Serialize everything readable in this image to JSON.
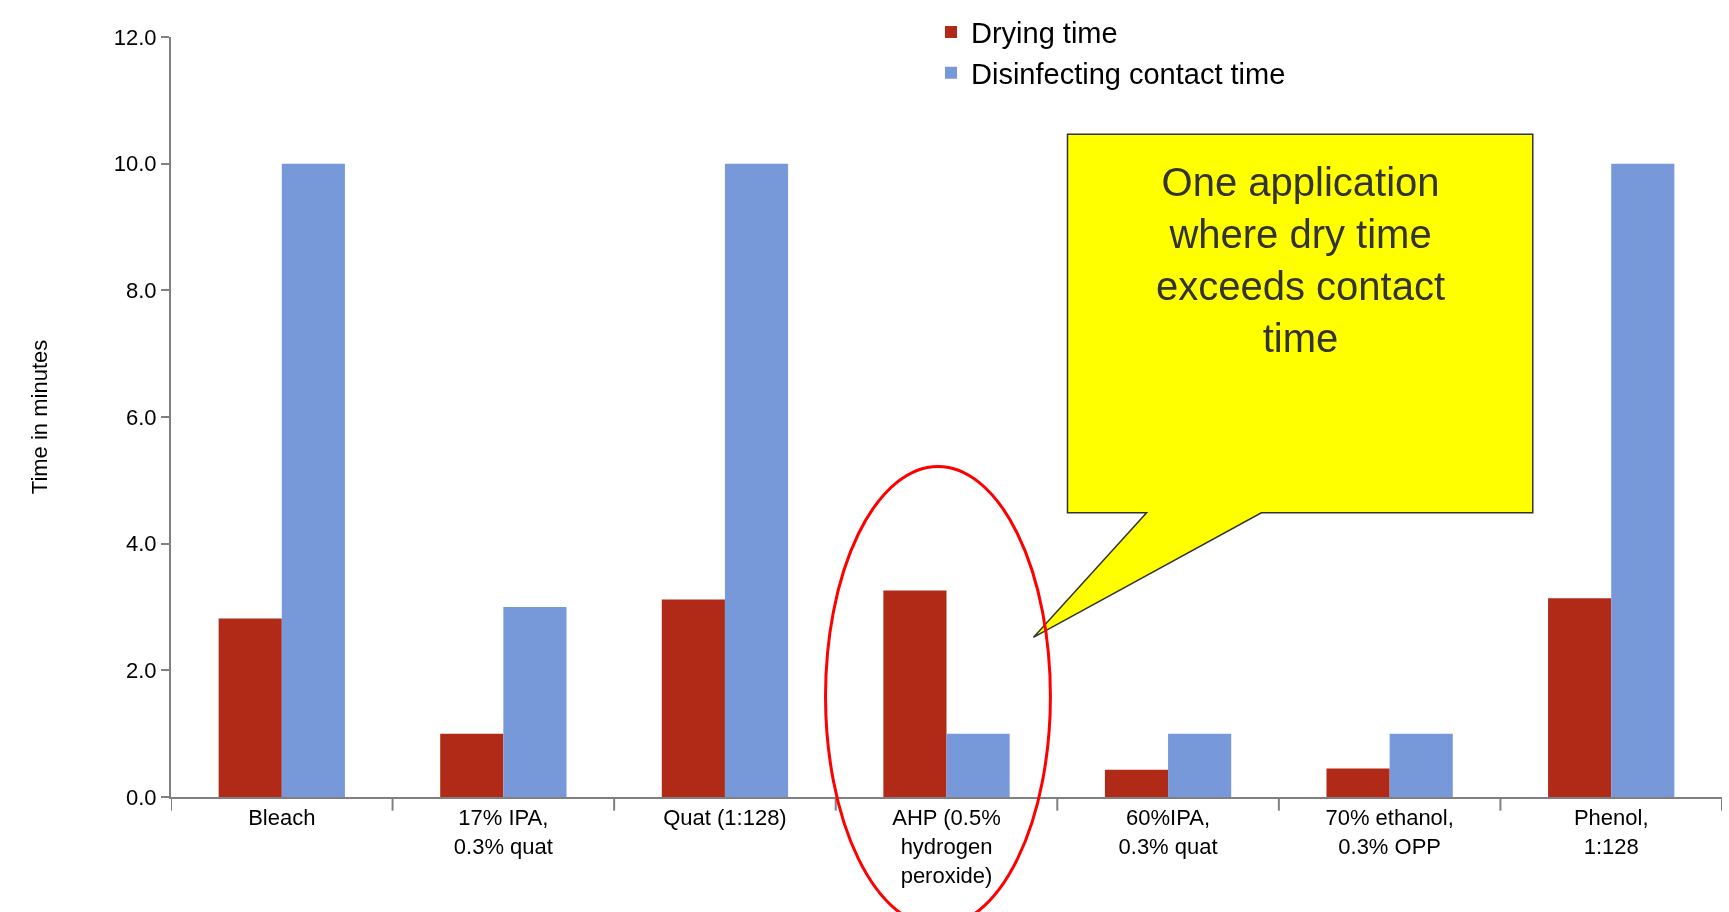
{
  "chart_data": {
    "type": "bar",
    "ylabel": "Time in minutes",
    "categories": [
      "Bleach",
      "17% IPA,\n0.3% quat",
      "Quat (1:128)",
      "AHP (0.5%\nhydrogen\nperoxide)",
      "60%IPA,\n0.3% quat",
      "70% ethanol,\n0.3% OPP",
      "Phenol,\n1:128"
    ],
    "series": [
      {
        "name": "Drying time",
        "color": "#b02a17",
        "values": [
          2.82,
          1.0,
          3.12,
          3.26,
          0.43,
          0.45,
          3.14
        ]
      },
      {
        "name": "Disinfecting contact time",
        "color": "#7799d9",
        "values": [
          10.0,
          3.0,
          10.0,
          1.0,
          1.0,
          1.0,
          10.0
        ]
      }
    ],
    "ylim": [
      0,
      12
    ],
    "yticks": [
      {
        "value": 0,
        "label": "0.0"
      },
      {
        "value": 2,
        "label": "2.0"
      },
      {
        "value": 4,
        "label": "4.0"
      },
      {
        "value": 6,
        "label": "6.0"
      },
      {
        "value": 8,
        "label": "8.0"
      },
      {
        "value": 10,
        "label": "10.0"
      },
      {
        "value": 12,
        "label": "12.0"
      }
    ],
    "annotations": [
      "One application\nwhere dry time\nexceeds contact\ntime"
    ],
    "legend": "top"
  }
}
